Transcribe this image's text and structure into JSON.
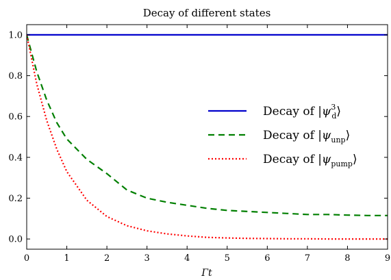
{
  "chart_data": {
    "type": "line",
    "title": "Decay of different states",
    "xlabel": "Γt",
    "ylabel": "",
    "xlim": [
      0,
      9
    ],
    "ylim": [
      -0.05,
      1.05
    ],
    "xticks": [
      "0",
      "1",
      "2",
      "3",
      "4",
      "5",
      "6",
      "7",
      "8",
      "9"
    ],
    "yticks": [
      "0.0",
      "0.2",
      "0.4",
      "0.6",
      "0.8",
      "1.0"
    ],
    "grid": false,
    "legend_placement": "center-right",
    "series": [
      {
        "name": "Decay of |ψd3⟩",
        "color": "#0000cc",
        "style": "solid",
        "x": [
          0,
          1,
          2,
          3,
          4,
          5,
          6,
          7,
          8,
          9
        ],
        "y": [
          1.0,
          1.0,
          1.0,
          1.0,
          1.0,
          1.0,
          1.0,
          1.0,
          1.0,
          1.0
        ]
      },
      {
        "name": "Decay of |ψunp⟩",
        "color": "#007f00",
        "style": "dashed",
        "x": [
          0,
          0.25,
          0.5,
          0.75,
          1,
          1.5,
          2,
          2.5,
          3,
          3.5,
          4,
          4.5,
          5,
          5.5,
          6,
          6.5,
          7,
          7.5,
          8,
          8.5,
          9
        ],
        "y": [
          1.0,
          0.82,
          0.68,
          0.57,
          0.49,
          0.39,
          0.32,
          0.24,
          0.2,
          0.18,
          0.165,
          0.15,
          0.14,
          0.135,
          0.13,
          0.125,
          0.12,
          0.12,
          0.117,
          0.115,
          0.115
        ]
      },
      {
        "name": "Decay of |ψpump⟩",
        "color": "#ff0000",
        "style": "dotted",
        "x": [
          0,
          0.25,
          0.5,
          0.75,
          1,
          1.5,
          2,
          2.5,
          3,
          3.5,
          4,
          4.5,
          5,
          5.5,
          6,
          6.5,
          7,
          7.5,
          8,
          8.5,
          9
        ],
        "y": [
          1.0,
          0.76,
          0.58,
          0.44,
          0.33,
          0.19,
          0.11,
          0.065,
          0.04,
          0.025,
          0.015,
          0.008,
          0.005,
          0.003,
          0.002,
          0.001,
          0.001,
          0.0,
          0.0,
          0.0,
          0.0
        ]
      }
    ],
    "legend": {
      "entries": [
        {
          "prefix": "Decay of ",
          "psi": "ψ",
          "sub": "d",
          "sup": "3"
        },
        {
          "prefix": "Decay of ",
          "psi": "ψ",
          "sub": "unp",
          "sup": ""
        },
        {
          "prefix": "Decay of ",
          "psi": "ψ",
          "sub": "pump",
          "sup": ""
        }
      ]
    }
  }
}
